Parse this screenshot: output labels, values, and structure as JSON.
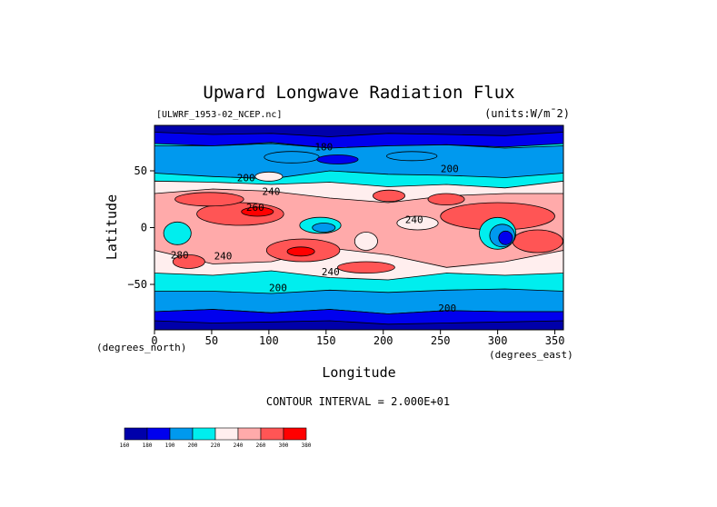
{
  "chart_data": {
    "type": "heatmap",
    "title": "Upward Longwave Radiation Flux",
    "file_label": "[ULWRF_1953-02_NCEP.nc]",
    "units_label": "(units:W/m¯2)",
    "xlabel": "Longitude",
    "ylabel": "Latitude",
    "x_unit_label": "(degrees_east)",
    "y_unit_label": "(degrees_north)",
    "xlim": [
      0,
      357.5
    ],
    "ylim": [
      -90,
      90
    ],
    "x_ticks": [
      0,
      50,
      100,
      150,
      200,
      250,
      300,
      350
    ],
    "y_ticks": [
      50,
      0,
      -50
    ],
    "contour_interval_text": "CONTOUR INTERVAL = 2.000E+01",
    "contour_levels": [
      160,
      180,
      200,
      220,
      240,
      260,
      280,
      300
    ],
    "contour_labels": [
      {
        "text": "180",
        "lon": 148,
        "lat": 68
      },
      {
        "text": "200",
        "lon": 258,
        "lat": 49
      },
      {
        "text": "200",
        "lon": 80,
        "lat": 41
      },
      {
        "text": "240",
        "lon": 102,
        "lat": 29
      },
      {
        "text": "260",
        "lon": 88,
        "lat": 15
      },
      {
        "text": "240",
        "lon": 227,
        "lat": 4
      },
      {
        "text": "280",
        "lon": 22,
        "lat": -27
      },
      {
        "text": "240",
        "lon": 60,
        "lat": -28
      },
      {
        "text": "240",
        "lon": 154,
        "lat": -42
      },
      {
        "text": "200",
        "lon": 108,
        "lat": -56
      },
      {
        "text": "200",
        "lon": 256,
        "lat": -74
      }
    ],
    "colorbar": {
      "levels": [
        "160",
        "180",
        "190",
        "200",
        "220",
        "240",
        "260",
        "300",
        "380"
      ],
      "colors": [
        "#0000aa",
        "#0000ee",
        "#0099ee",
        "#00eeee",
        "#ffeeee",
        "#ffaaaa",
        "#ff5555",
        "#ff0000"
      ]
    },
    "grid": false,
    "legend": "colorbar bottom-left"
  },
  "palette": {
    "c160": "#0000aa",
    "c180": "#0000ee",
    "c200": "#0099ee",
    "c220": "#00eeee",
    "c240": "#ffeeee",
    "c260": "#ffaaaa",
    "c280": "#ff5555",
    "c300": "#ff0000"
  }
}
